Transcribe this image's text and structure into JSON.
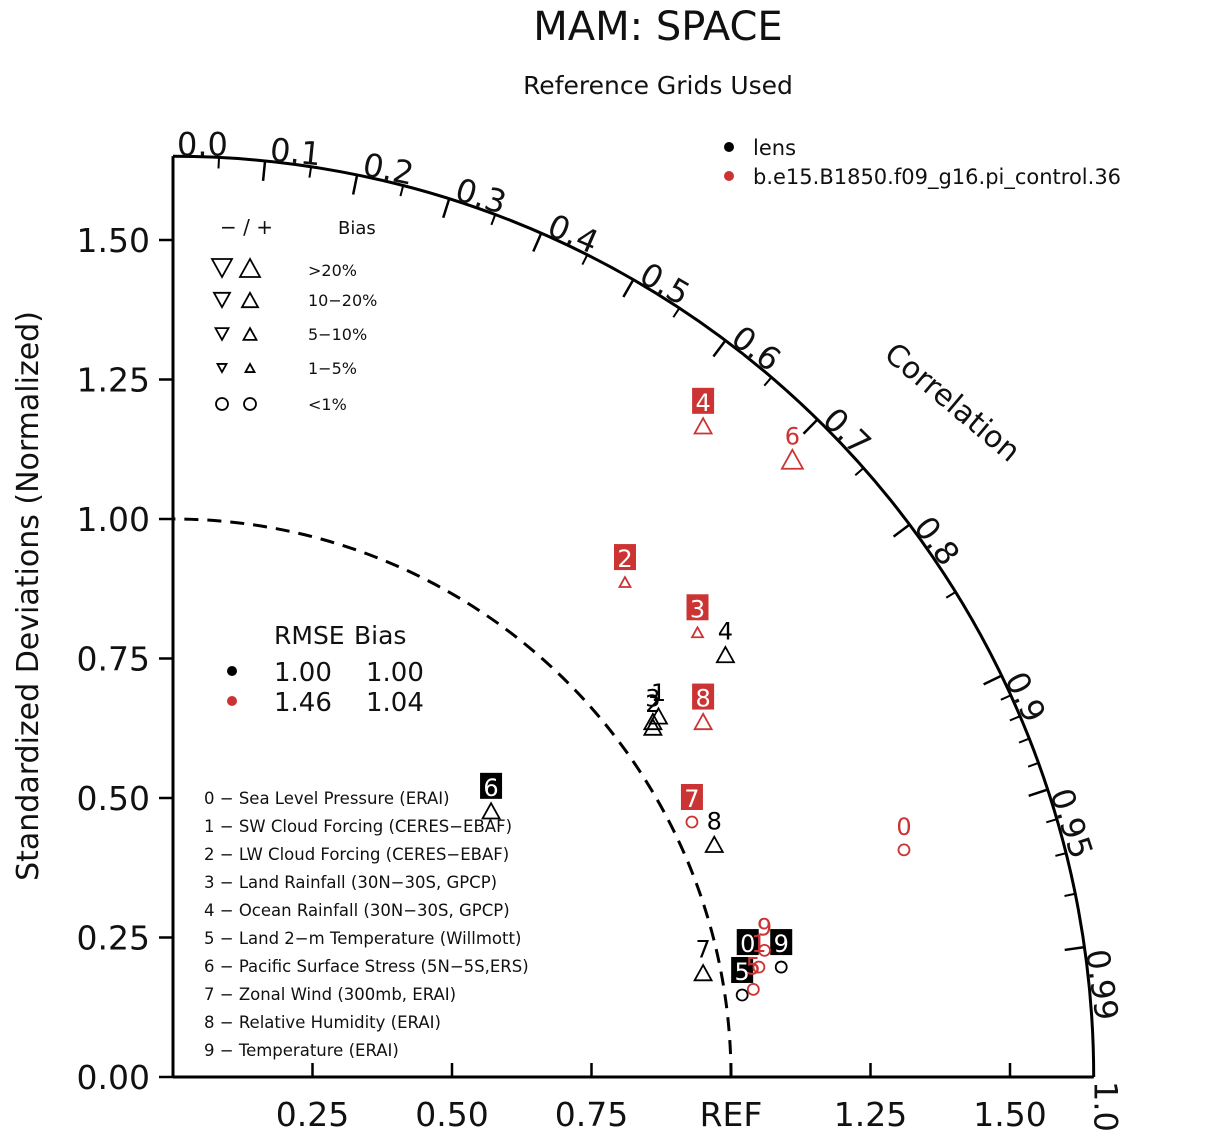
{
  "chart_data": {
    "type": "scatter",
    "subtype": "taylor-diagram",
    "title": "MAM: SPACE",
    "subtitle": "Reference Grids Used",
    "ylabel": "Standardized Deviations (Normalized)",
    "arc_label": "Correlation",
    "sd_range": [
      0,
      1.65
    ],
    "ref_label": "REF",
    "ref_circle_radius": 1.0,
    "y_ticks": [
      "0.00",
      "0.25",
      "0.50",
      "0.75",
      "1.00",
      "1.25",
      "1.50"
    ],
    "y_tick_values": [
      0,
      0.25,
      0.5,
      0.75,
      1.0,
      1.25,
      1.5
    ],
    "x_ticks": [
      "0.25",
      "0.50",
      "0.75",
      "REF",
      "1.25",
      "1.50"
    ],
    "x_tick_values": [
      0.25,
      0.5,
      0.75,
      1.0,
      1.25,
      1.5
    ],
    "corr_labels": [
      "0.0",
      "0.1",
      "0.2",
      "0.3",
      "0.4",
      "0.5",
      "0.6",
      "0.7",
      "0.8",
      "0.9",
      "0.95",
      "0.99",
      "1.0"
    ],
    "corr_label_values": [
      0.0,
      0.1,
      0.2,
      0.3,
      0.4,
      0.5,
      0.6,
      0.7,
      0.8,
      0.9,
      0.95,
      0.99,
      1.0
    ],
    "corr_minor_ticks": [
      0.05,
      0.15,
      0.25,
      0.35,
      0.45,
      0.55,
      0.65,
      0.75,
      0.85,
      0.91,
      0.92,
      0.93,
      0.94,
      0.96,
      0.97,
      0.98
    ],
    "series": [
      {
        "name": "lens",
        "color": "#000000",
        "points": [
          {
            "label": "0",
            "x": 1.03,
            "y": 0.24,
            "marker": "circle",
            "boxed": true
          },
          {
            "label": "1",
            "x": 0.87,
            "y": 0.69,
            "marker": "triangle-up",
            "boxed": false
          },
          {
            "label": "2",
            "x": 0.86,
            "y": 0.67,
            "marker": "triangle-up",
            "boxed": false
          },
          {
            "label": "3",
            "x": 0.86,
            "y": 0.68,
            "marker": "triangle-up",
            "boxed": false
          },
          {
            "label": "4",
            "x": 0.99,
            "y": 0.8,
            "marker": "triangle-up",
            "boxed": false
          },
          {
            "label": "5",
            "x": 1.02,
            "y": 0.19,
            "marker": "circle",
            "boxed": true
          },
          {
            "label": "6",
            "x": 0.57,
            "y": 0.52,
            "marker": "triangle-up",
            "boxed": true
          },
          {
            "label": "7",
            "x": 0.95,
            "y": 0.23,
            "marker": "triangle-up",
            "boxed": false
          },
          {
            "label": "8",
            "x": 0.97,
            "y": 0.46,
            "marker": "triangle-up",
            "boxed": false
          },
          {
            "label": "9",
            "x": 1.09,
            "y": 0.24,
            "marker": "circle",
            "boxed": true
          }
        ]
      },
      {
        "name": "b.e15.B1850.f09_g16.pi_control.36",
        "color": "#cc3333",
        "points": [
          {
            "label": "0",
            "x": 1.31,
            "y": 0.45,
            "marker": "circle",
            "boxed": false
          },
          {
            "label": "1",
            "x": 1.05,
            "y": 0.24,
            "marker": "circle",
            "boxed": false
          },
          {
            "label": "2",
            "x": 0.81,
            "y": 0.93,
            "marker": "triangle-up-small",
            "boxed": true
          },
          {
            "label": "3",
            "x": 0.94,
            "y": 0.84,
            "marker": "triangle-up-small",
            "boxed": true
          },
          {
            "label": "4",
            "x": 0.95,
            "y": 1.21,
            "marker": "triangle-up",
            "boxed": true
          },
          {
            "label": "5",
            "x": 1.04,
            "y": 0.2,
            "marker": "circle",
            "boxed": false
          },
          {
            "label": "6",
            "x": 1.11,
            "y": 1.15,
            "marker": "triangle-up-large",
            "boxed": false
          },
          {
            "label": "7",
            "x": 0.93,
            "y": 0.5,
            "marker": "circle",
            "boxed": true
          },
          {
            "label": "8",
            "x": 0.95,
            "y": 0.68,
            "marker": "triangle-up",
            "boxed": true
          },
          {
            "label": "9",
            "x": 1.06,
            "y": 0.27,
            "marker": "circle",
            "boxed": false
          }
        ]
      }
    ],
    "stats": {
      "header": [
        "RMSE",
        "Bias"
      ],
      "rows": [
        {
          "series": "lens",
          "rmse": "1.00",
          "bias": "1.00"
        },
        {
          "series": "b.e15.B1850.f09_g16.pi_control.36",
          "rmse": "1.46",
          "bias": "1.04"
        }
      ]
    },
    "bias_legend": {
      "header_sign": "− / +",
      "header_label": "Bias",
      "rows": [
        {
          "label": ">20%",
          "shape": "triangle",
          "level": 4
        },
        {
          "label": "10−20%",
          "shape": "triangle",
          "level": 3
        },
        {
          "label": "5−10%",
          "shape": "triangle",
          "level": 2
        },
        {
          "label": "1−5%",
          "shape": "triangle",
          "level": 1
        },
        {
          "label": "<1%",
          "shape": "circle",
          "level": 2
        }
      ]
    },
    "variables": [
      "0 − Sea Level Pressure (ERAI)",
      "1 − SW Cloud Forcing (CERES−EBAF)",
      "2 − LW Cloud Forcing (CERES−EBAF)",
      "3 − Land Rainfall (30N−30S, GPCP)",
      "4 − Ocean Rainfall (30N−30S, GPCP)",
      "5 − Land 2−m Temperature (Willmott)",
      "6 − Pacific Surface Stress (5N−5S,ERS)",
      "7 − Zonal Wind (300mb, ERAI)",
      "8 − Relative Humidity (ERAI)",
      "9 − Temperature (ERAI)"
    ]
  }
}
